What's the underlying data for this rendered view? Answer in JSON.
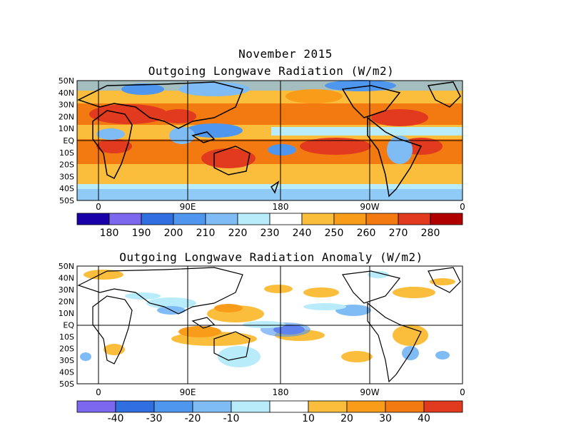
{
  "header": {
    "title": "November 2015"
  },
  "maps": [
    {
      "title": "Outgoing Longwave Radiation (W/m2)",
      "lat_labels": [
        "50N",
        "40N",
        "30N",
        "20N",
        "10N",
        "EQ",
        "10S",
        "20S",
        "30S",
        "40S",
        "50S"
      ],
      "lon_labels": [
        "0",
        "90E",
        "180",
        "90W",
        "0"
      ],
      "colorbar": {
        "colors": [
          "#1a00a8",
          "#7b68ee",
          "#2f6fe0",
          "#4f96ef",
          "#7fbcf5",
          "#b9ecfb",
          "#ffffff",
          "#fbbe3c",
          "#f99c1a",
          "#f37a10",
          "#e23a1e",
          "#b00000"
        ],
        "labels": [
          "180",
          "190",
          "200",
          "210",
          "220",
          "230",
          "240",
          "250",
          "260",
          "270",
          "280"
        ]
      }
    },
    {
      "title": "Outgoing Longwave Radiation Anomaly (W/m2)",
      "lat_labels": [
        "50N",
        "40N",
        "30N",
        "20N",
        "10N",
        "EQ",
        "10S",
        "20S",
        "30S",
        "40S",
        "50S"
      ],
      "lon_labels": [
        "0",
        "90E",
        "180",
        "90W",
        "0"
      ],
      "colorbar": {
        "colors": [
          "#7b68ee",
          "#2f6fe0",
          "#4f96ef",
          "#7fbcf5",
          "#b9ecfb",
          "#ffffff",
          "#fbbe3c",
          "#f99c1a",
          "#f37a10",
          "#e23a1e"
        ],
        "labels": [
          "-40",
          "-30",
          "-20",
          "-10",
          "10",
          "20",
          "30",
          "40"
        ]
      }
    }
  ]
}
